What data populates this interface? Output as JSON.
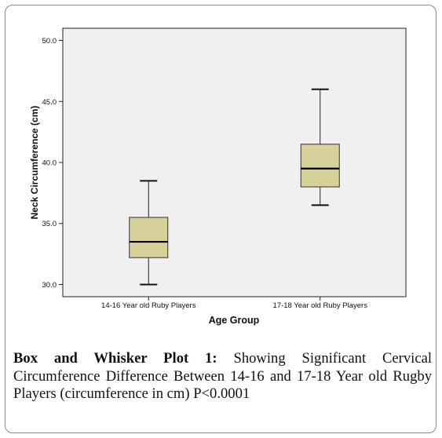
{
  "chart_data": {
    "type": "box",
    "xlabel": "Age Group",
    "ylabel": "Neck Circumference (cm)",
    "ylim": [
      29.0,
      51.0
    ],
    "yticks": [
      "30.0",
      "35.0",
      "40.0",
      "45.0",
      "50.0"
    ],
    "grid": false,
    "box_color": "#d6d09a",
    "plot_background": "#f0f0f0",
    "categories": [
      "14-16 Year old Ruby Players",
      "17-18 Year old Ruby Players"
    ],
    "boxes": [
      {
        "category": "14-16 Year old Ruby Players",
        "min": 30.0,
        "q1": 32.2,
        "median": 33.5,
        "q3": 35.5,
        "max": 38.5
      },
      {
        "category": "17-18 Year old Ruby Players",
        "min": 36.5,
        "q1": 38.0,
        "median": 39.5,
        "q3": 41.5,
        "max": 46.0
      }
    ]
  },
  "caption": {
    "lead": "Box and Whisker Plot 1:",
    "text": "Showing Significant Cervical Circumference Difference Between 14-16 and 17-18 Year old Rugby Players (circumference in cm) P<0.0001"
  }
}
